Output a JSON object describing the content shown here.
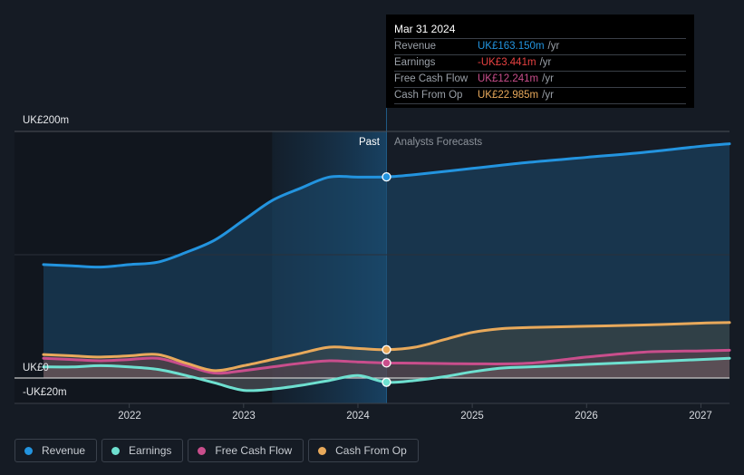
{
  "tooltip": {
    "date": "Mar 31 2024",
    "rows": [
      {
        "label": "Revenue",
        "value": "UK£163.150m",
        "unit": "/yr",
        "color": "#2394df"
      },
      {
        "label": "Earnings",
        "value": "-UK£3.441m",
        "unit": "/yr",
        "color": "#e64141"
      },
      {
        "label": "Free Cash Flow",
        "value": "UK£12.241m",
        "unit": "/yr",
        "color": "#c94e8c"
      },
      {
        "label": "Cash From Op",
        "value": "UK£22.985m",
        "unit": "/yr",
        "color": "#e8a95b"
      }
    ]
  },
  "legend": [
    {
      "label": "Revenue",
      "color": "#2394df"
    },
    {
      "label": "Earnings",
      "color": "#6ee0d0"
    },
    {
      "label": "Free Cash Flow",
      "color": "#c94e8c"
    },
    {
      "label": "Cash From Op",
      "color": "#e8a95b"
    }
  ],
  "chart_data": {
    "type": "line",
    "title": "",
    "xlabel": "",
    "ylabel": "",
    "y_tick_labels": [
      "UK£200m",
      "UK£0",
      "-UK£20m"
    ],
    "y_ticks": [
      200,
      0,
      -20
    ],
    "ylim": [
      -20,
      200
    ],
    "x_tick_labels": [
      "2022",
      "2023",
      "2024",
      "2025",
      "2026",
      "2027"
    ],
    "x_ticks": [
      2022,
      2023,
      2024,
      2025,
      2026,
      2027
    ],
    "xlim": [
      2021.25,
      2027.25
    ],
    "past_label": "Past",
    "forecast_label": "Analysts Forecasts",
    "divider_x": 2024.25,
    "highlight_start_x": 2023.25,
    "series": [
      {
        "name": "Revenue",
        "color": "#2394df",
        "x": [
          2021.25,
          2021.5,
          2021.75,
          2022.0,
          2022.25,
          2022.5,
          2022.75,
          2023.0,
          2023.25,
          2023.5,
          2023.75,
          2024.0,
          2024.25,
          2024.5,
          2025.0,
          2025.5,
          2026.0,
          2026.5,
          2027.0,
          2027.25
        ],
        "values": [
          92,
          91,
          90,
          92,
          94,
          102,
          112,
          128,
          144,
          154,
          163,
          163,
          163.15,
          165,
          170,
          175,
          179,
          183,
          188,
          190
        ]
      },
      {
        "name": "Earnings",
        "color": "#6ee0d0",
        "x": [
          2021.25,
          2021.5,
          2021.75,
          2022.0,
          2022.25,
          2022.5,
          2022.75,
          2023.0,
          2023.25,
          2023.5,
          2023.75,
          2024.0,
          2024.25,
          2024.5,
          2024.75,
          2025.0,
          2025.25,
          2025.5,
          2026.0,
          2026.5,
          2027.0,
          2027.25
        ],
        "values": [
          9,
          9,
          10,
          9,
          7,
          2,
          -4,
          -10,
          -9,
          -6,
          -2,
          2,
          -3.441,
          -2,
          1,
          5,
          8,
          9,
          11,
          13,
          15,
          16
        ]
      },
      {
        "name": "Free Cash Flow",
        "color": "#c94e8c",
        "x": [
          2021.25,
          2021.5,
          2021.75,
          2022.0,
          2022.25,
          2022.5,
          2022.75,
          2023.0,
          2023.25,
          2023.5,
          2023.75,
          2024.0,
          2024.25,
          2024.5,
          2025.0,
          2025.5,
          2026.0,
          2026.5,
          2027.0,
          2027.25
        ],
        "values": [
          16,
          15,
          14,
          15,
          16,
          10,
          4,
          6,
          9,
          12,
          14,
          13,
          12.241,
          12,
          11.5,
          12,
          17,
          21,
          22,
          22.5
        ]
      },
      {
        "name": "Cash From Op",
        "color": "#e8a95b",
        "x": [
          2021.25,
          2021.5,
          2021.75,
          2022.0,
          2022.25,
          2022.5,
          2022.75,
          2023.0,
          2023.25,
          2023.5,
          2023.75,
          2024.0,
          2024.25,
          2024.5,
          2024.75,
          2025.0,
          2025.25,
          2025.5,
          2026.0,
          2026.5,
          2027.0,
          2027.25
        ],
        "values": [
          19,
          18,
          17,
          18,
          19,
          12,
          6,
          10,
          15,
          20,
          25,
          24,
          22.985,
          25,
          31,
          37,
          40,
          41,
          42,
          43,
          44.5,
          45
        ]
      }
    ]
  }
}
